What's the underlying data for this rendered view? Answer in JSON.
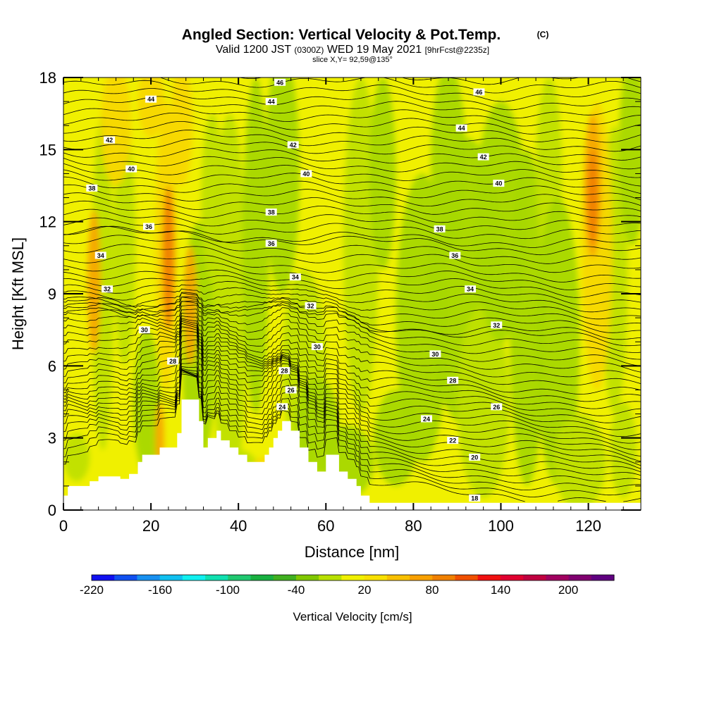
{
  "chart_data": {
    "type": "heatmap",
    "title": "Angled Section: Vertical Velocity & Pot.Temp.",
    "title_mark": "(C)",
    "subtitle_parts": [
      "Valid 1200 JST",
      "(0300Z)",
      "WED 19 May 2021",
      "[9hrFcst@2235z]"
    ],
    "slice_label": "slice X,Y= 92,59@135°",
    "xlabel": "Distance [nm]",
    "ylabel": "Height [Kft MSL]",
    "xlim": [
      0,
      132
    ],
    "ylim": [
      0,
      18
    ],
    "xticks": [
      0,
      20,
      40,
      60,
      80,
      100,
      120
    ],
    "yticks": [
      0,
      3,
      6,
      9,
      12,
      15,
      18
    ],
    "colorbar": {
      "label": "Vertical Velocity [cm/s]",
      "tick_labels": [
        "-220",
        "-160",
        "-100",
        "-40",
        "20",
        "80",
        "140",
        "200"
      ],
      "colors": [
        "#1010f0",
        "#1050f0",
        "#1890f0",
        "#10c0f0",
        "#10f0f0",
        "#10e0b0",
        "#20c870",
        "#18b040",
        "#40b020",
        "#80c800",
        "#b8e000",
        "#f0f000",
        "#f8e000",
        "#f8c000",
        "#f8a000",
        "#f08000",
        "#f05000",
        "#f01010",
        "#e00030",
        "#c00040",
        "#a00060",
        "#800070",
        "#600080"
      ]
    },
    "colors": {
      "background_field": "#f0f000",
      "weak_updraft": "#f8d800",
      "updraft": "#f8a800",
      "strong_updraft": "#f08000",
      "weak_downdraft": "#c0e000",
      "downdraft": "#a8d800",
      "contour": "#000000",
      "terrain": "#ffffff"
    },
    "contour_levels": [
      18,
      20,
      22,
      24,
      26,
      28,
      30,
      32,
      34,
      36,
      38,
      40,
      42,
      44,
      46
    ],
    "contour_labels": [
      {
        "text": "46",
        "x": 49.5,
        "y": 17.8
      },
      {
        "text": "44",
        "x": 20,
        "y": 17.1
      },
      {
        "text": "44",
        "x": 47.5,
        "y": 17.0
      },
      {
        "text": "46",
        "x": 95,
        "y": 17.4
      },
      {
        "text": "42",
        "x": 10.5,
        "y": 15.4
      },
      {
        "text": "44",
        "x": 91,
        "y": 15.9
      },
      {
        "text": "42",
        "x": 52.5,
        "y": 15.2
      },
      {
        "text": "42",
        "x": 96,
        "y": 14.7
      },
      {
        "text": "40",
        "x": 15.5,
        "y": 14.2
      },
      {
        "text": "40",
        "x": 55.5,
        "y": 14.0
      },
      {
        "text": "38",
        "x": 6.5,
        "y": 13.4
      },
      {
        "text": "40",
        "x": 99.5,
        "y": 13.6
      },
      {
        "text": "38",
        "x": 47.5,
        "y": 12.4
      },
      {
        "text": "36",
        "x": 19.5,
        "y": 11.8
      },
      {
        "text": "38",
        "x": 86,
        "y": 11.7
      },
      {
        "text": "36",
        "x": 47.5,
        "y": 11.1
      },
      {
        "text": "34",
        "x": 8.5,
        "y": 10.6
      },
      {
        "text": "36",
        "x": 89.5,
        "y": 10.6
      },
      {
        "text": "34",
        "x": 53,
        "y": 9.7
      },
      {
        "text": "32",
        "x": 10,
        "y": 9.2
      },
      {
        "text": "34",
        "x": 93,
        "y": 9.2
      },
      {
        "text": "32",
        "x": 56.5,
        "y": 8.5
      },
      {
        "text": "30",
        "x": 18.5,
        "y": 7.5
      },
      {
        "text": "32",
        "x": 99,
        "y": 7.7
      },
      {
        "text": "30",
        "x": 58,
        "y": 6.8
      },
      {
        "text": "30",
        "x": 85,
        "y": 6.5
      },
      {
        "text": "28",
        "x": 25,
        "y": 6.2
      },
      {
        "text": "28",
        "x": 50.5,
        "y": 5.8
      },
      {
        "text": "28",
        "x": 89,
        "y": 5.4
      },
      {
        "text": "26",
        "x": 52,
        "y": 5.0
      },
      {
        "text": "24",
        "x": 50,
        "y": 4.3
      },
      {
        "text": "26",
        "x": 99,
        "y": 4.3
      },
      {
        "text": "24",
        "x": 83,
        "y": 3.8
      },
      {
        "text": "22",
        "x": 89,
        "y": 2.9
      },
      {
        "text": "20",
        "x": 94,
        "y": 2.2
      },
      {
        "text": "18",
        "x": 94,
        "y": 0.5
      }
    ],
    "terrain_profile": [
      [
        0,
        0.6
      ],
      [
        1,
        0.6
      ],
      [
        1,
        1.0
      ],
      [
        6,
        1.0
      ],
      [
        6,
        1.2
      ],
      [
        8,
        1.2
      ],
      [
        8,
        1.4
      ],
      [
        13,
        1.4
      ],
      [
        13,
        1.3
      ],
      [
        15,
        1.3
      ],
      [
        15,
        1.5
      ],
      [
        17,
        1.5
      ],
      [
        17,
        2.0
      ],
      [
        18,
        2.0
      ],
      [
        18,
        2.3
      ],
      [
        22,
        2.3
      ],
      [
        22,
        2.6
      ],
      [
        26,
        2.6
      ],
      [
        26,
        3.2
      ],
      [
        27,
        3.2
      ],
      [
        27,
        4.6
      ],
      [
        31,
        4.6
      ],
      [
        31,
        3.7
      ],
      [
        32,
        3.7
      ],
      [
        32,
        2.6
      ],
      [
        33,
        2.6
      ],
      [
        33,
        3.0
      ],
      [
        35,
        3.0
      ],
      [
        35,
        3.3
      ],
      [
        36,
        3.3
      ],
      [
        36,
        2.9
      ],
      [
        38,
        2.9
      ],
      [
        38,
        2.6
      ],
      [
        40,
        2.6
      ],
      [
        40,
        2.3
      ],
      [
        42,
        2.3
      ],
      [
        42,
        2.0
      ],
      [
        46,
        2.0
      ],
      [
        46,
        2.3
      ],
      [
        47,
        2.3
      ],
      [
        47,
        2.6
      ],
      [
        48,
        2.6
      ],
      [
        48,
        3.0
      ],
      [
        49,
        3.0
      ],
      [
        49,
        3.3
      ],
      [
        50,
        3.3
      ],
      [
        50,
        3.7
      ],
      [
        52,
        3.7
      ],
      [
        52,
        3.3
      ],
      [
        54,
        3.3
      ],
      [
        54,
        2.6
      ],
      [
        56,
        2.6
      ],
      [
        56,
        2.0
      ],
      [
        58,
        2.0
      ],
      [
        58,
        1.6
      ],
      [
        60,
        1.6
      ],
      [
        60,
        2.3
      ],
      [
        63,
        2.3
      ],
      [
        63,
        1.6
      ],
      [
        65,
        1.6
      ],
      [
        65,
        1.3
      ],
      [
        67,
        1.3
      ],
      [
        67,
        1.0
      ],
      [
        68,
        1.0
      ],
      [
        68,
        0.6
      ],
      [
        70,
        0.6
      ],
      [
        70,
        0.3
      ],
      [
        132,
        0.3
      ]
    ]
  }
}
